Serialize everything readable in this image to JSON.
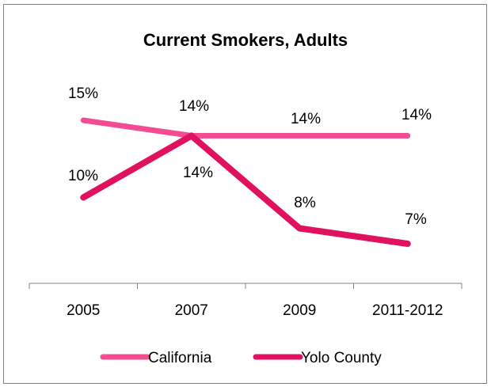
{
  "chart_data": {
    "type": "line",
    "title": "Current Smokers, Adults",
    "categories": [
      "2005",
      "2007",
      "2009",
      "2011-2012"
    ],
    "series": [
      {
        "name": "California",
        "values": [
          15,
          14,
          14,
          14
        ],
        "labels": [
          "15%",
          "14%",
          "14%",
          "14%"
        ],
        "color": "#f24d93"
      },
      {
        "name": "Yolo County",
        "values": [
          10,
          14,
          8,
          7
        ],
        "labels": [
          "10%",
          "14%",
          "8%",
          "7%"
        ],
        "color": "#e0115f"
      }
    ],
    "ylim": [
      0,
      20
    ],
    "grid": false,
    "legend": "bottom"
  }
}
